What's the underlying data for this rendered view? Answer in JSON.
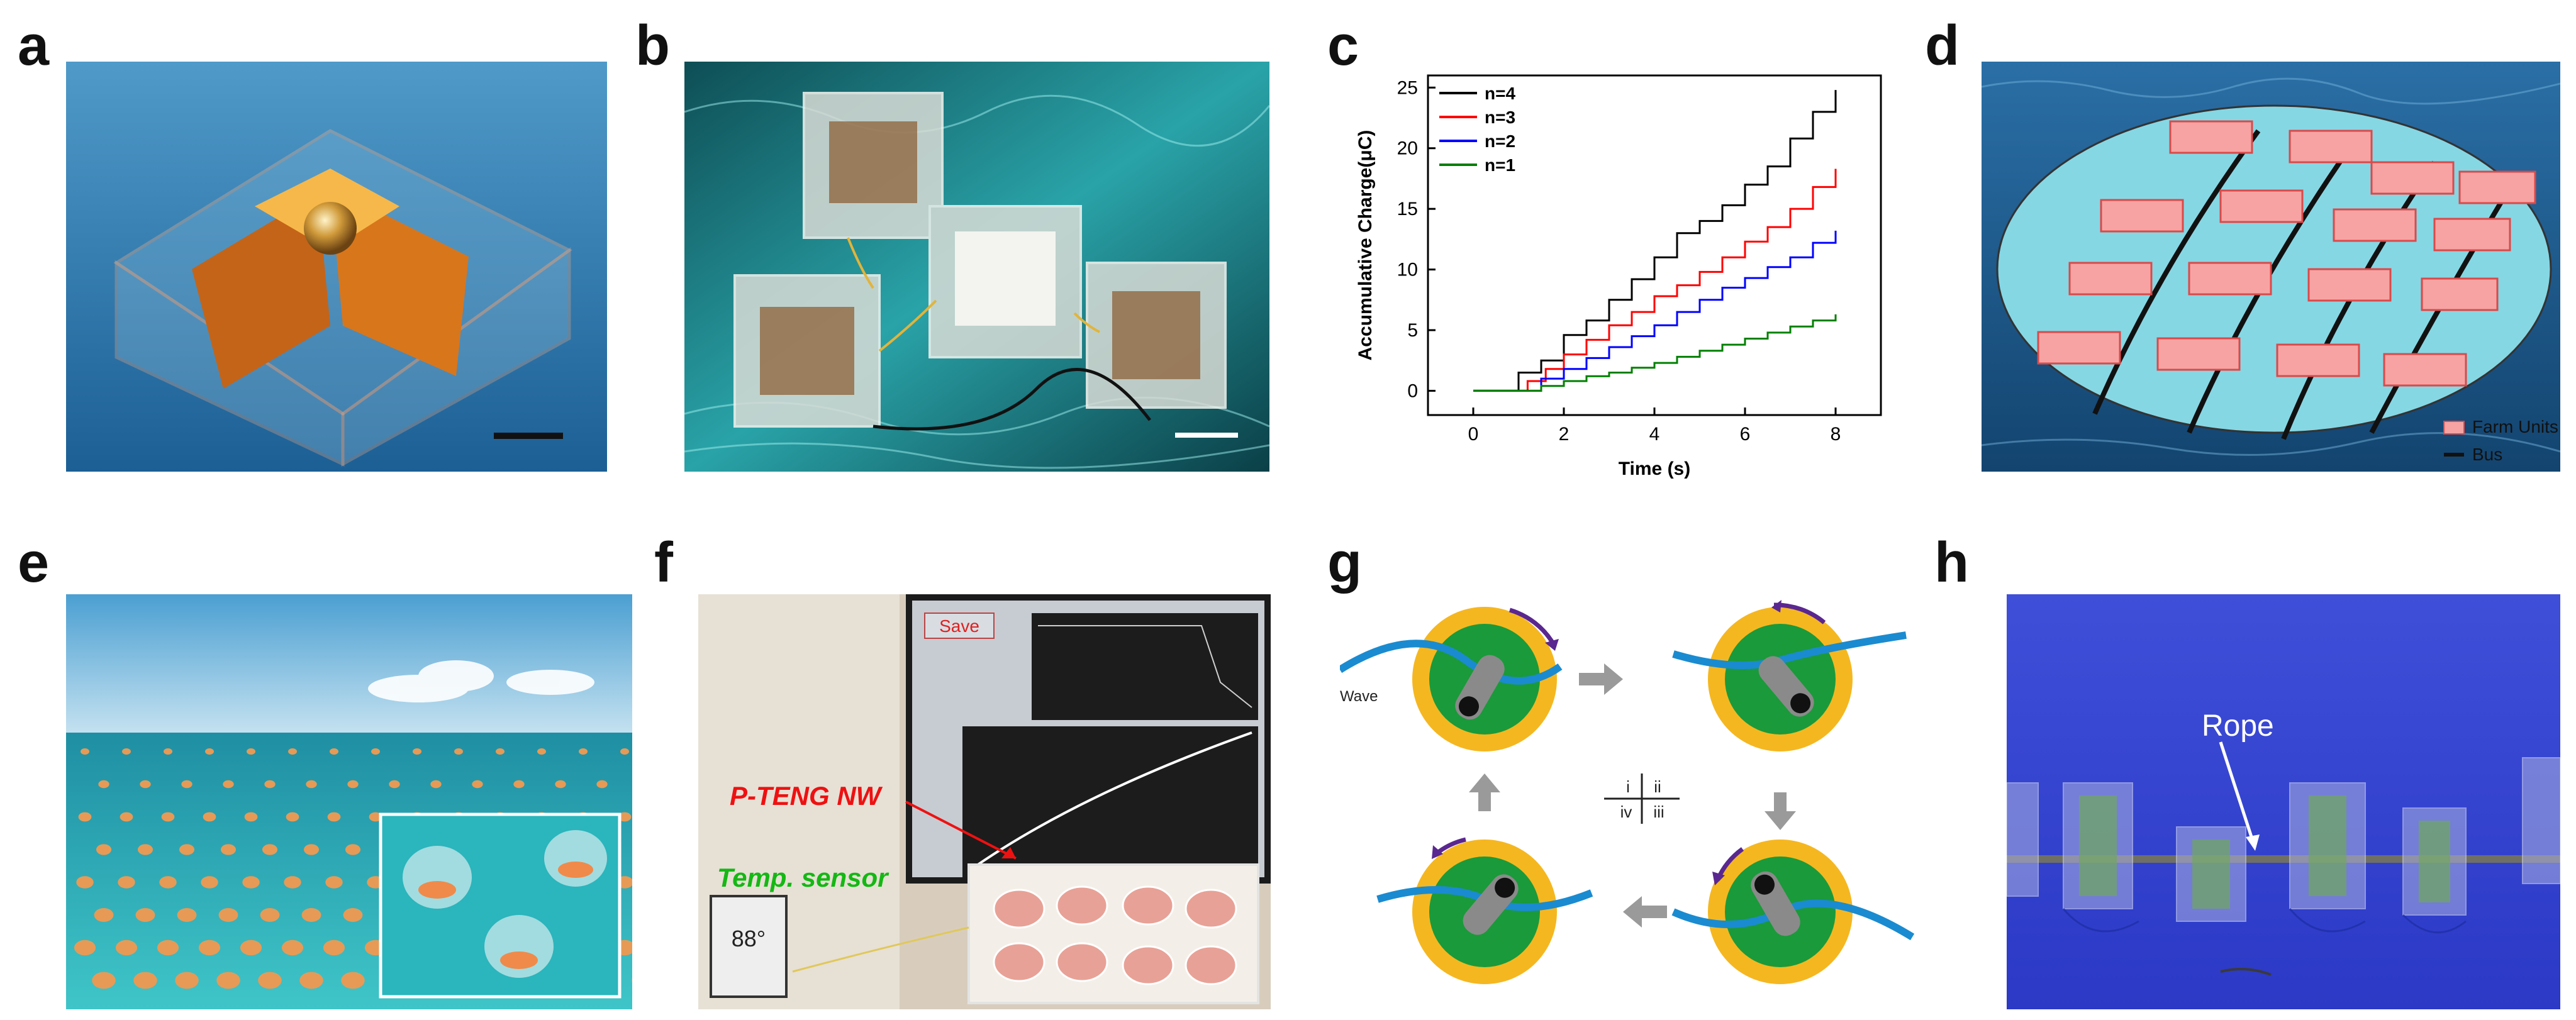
{
  "panels": {
    "a": {
      "label": "a"
    },
    "b": {
      "label": "b"
    },
    "c": {
      "label": "c"
    },
    "d": {
      "label": "d",
      "legend": [
        "Farm Units",
        "Bus"
      ]
    },
    "e": {
      "label": "e"
    },
    "f": {
      "label": "f",
      "save_button": "Save",
      "annotation_nw": "P-TENG NW",
      "annotation_sensor": "Temp. sensor"
    },
    "g": {
      "label": "g",
      "wave_label": "Wave",
      "quadrants": [
        "i",
        "ii",
        "iv",
        "iii"
      ]
    },
    "h": {
      "label": "h",
      "rope_label": "Rope"
    }
  },
  "chart_data": {
    "type": "line",
    "xlabel": "Time (s)",
    "ylabel": "Accumulative Charge(μC)",
    "xlim": [
      -1,
      9
    ],
    "ylim": [
      -2,
      26
    ],
    "xticks": [
      0,
      2,
      4,
      6,
      8
    ],
    "yticks": [
      0,
      5,
      10,
      15,
      20,
      25
    ],
    "grid": false,
    "legend_position": "top-left",
    "series": [
      {
        "name": "n=4",
        "color": "#000000",
        "x": [
          0,
          0.5,
          1,
          1.5,
          2,
          2.5,
          3,
          3.5,
          4,
          4.5,
          5,
          5.5,
          6,
          6.5,
          7,
          7.5,
          8
        ],
        "y": [
          0,
          0,
          1.5,
          2.5,
          4.6,
          5.8,
          7.5,
          9.2,
          11,
          13,
          14,
          15.3,
          17,
          18.5,
          20.8,
          23,
          24.8
        ]
      },
      {
        "name": "n=3",
        "color": "#ff0000",
        "x": [
          0,
          0.8,
          1.2,
          1.6,
          2,
          2.5,
          3,
          3.5,
          4,
          4.5,
          5,
          5.5,
          6,
          6.5,
          7,
          7.5,
          8
        ],
        "y": [
          0,
          0,
          0.8,
          1.8,
          3,
          4.2,
          5.4,
          6.5,
          7.8,
          8.7,
          9.8,
          11,
          12.3,
          13.5,
          15,
          16.8,
          18.3
        ]
      },
      {
        "name": "n=2",
        "color": "#0000ff",
        "x": [
          0,
          1,
          1.5,
          2,
          2.5,
          3,
          3.5,
          4,
          4.5,
          5,
          5.5,
          6,
          6.5,
          7,
          7.5,
          8
        ],
        "y": [
          0,
          0,
          1,
          1.8,
          2.7,
          3.6,
          4.5,
          5.4,
          6.5,
          7.5,
          8.5,
          9.3,
          10.2,
          11,
          12.2,
          13.2
        ]
      },
      {
        "name": "n=1",
        "color": "#008000",
        "x": [
          0,
          1,
          1.5,
          2,
          2.5,
          3,
          3.5,
          4,
          4.5,
          5,
          5.5,
          6,
          6.5,
          7,
          7.5,
          8
        ],
        "y": [
          0,
          0,
          0.4,
          0.8,
          1.2,
          1.5,
          1.9,
          2.3,
          2.8,
          3.3,
          3.8,
          4.3,
          4.8,
          5.3,
          5.8,
          6.3
        ]
      }
    ]
  }
}
